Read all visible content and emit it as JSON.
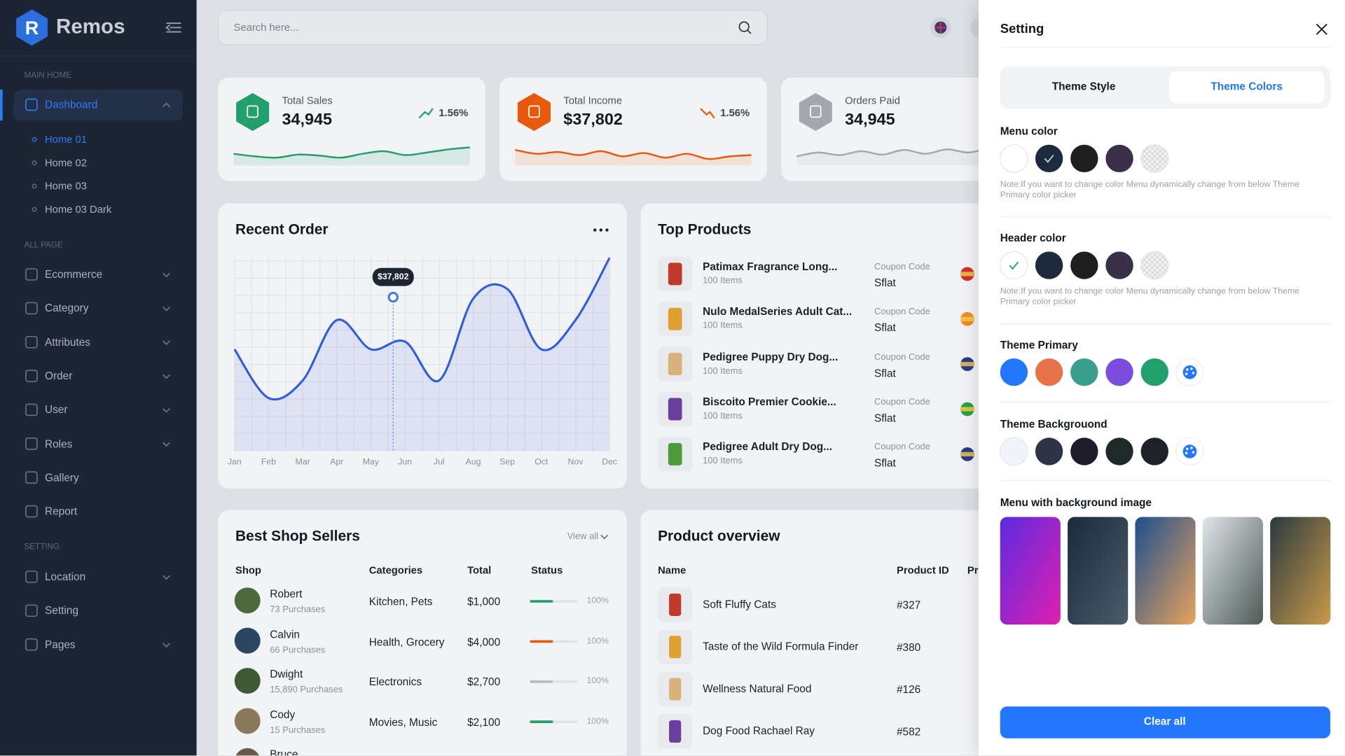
{
  "brand": "Remos",
  "logo_mark": "R",
  "search_placeholder": "Search here...",
  "sidebar": [
    {
      "heading": "MAIN HOME",
      "items": [
        {
          "label": "Dashboard",
          "active": true,
          "children": [
            "Home 01",
            "Home 02",
            "Home 03",
            "Home 03 Dark"
          ]
        }
      ]
    },
    {
      "heading": "ALL PAGE",
      "items": [
        {
          "label": "Ecommerce",
          "expandable": true
        },
        {
          "label": "Category",
          "expandable": true
        },
        {
          "label": "Attributes",
          "expandable": true
        },
        {
          "label": "Order",
          "expandable": true
        },
        {
          "label": "User",
          "expandable": true
        },
        {
          "label": "Roles",
          "expandable": true
        },
        {
          "label": "Gallery",
          "expandable": false
        },
        {
          "label": "Report",
          "expandable": false
        }
      ]
    },
    {
      "heading": "SETTING",
      "items": [
        {
          "label": "Location",
          "expandable": true
        },
        {
          "label": "Setting",
          "expandable": false
        },
        {
          "label": "Pages",
          "expandable": true
        }
      ]
    }
  ],
  "stats": [
    {
      "label": "Total Sales",
      "value": "34,945",
      "change": "1.56%",
      "trend": "up",
      "color": "#22a06b",
      "sparkline": [
        45,
        35,
        30,
        42,
        38,
        30,
        45,
        55,
        40,
        50,
        62,
        70
      ]
    },
    {
      "label": "Total Income",
      "value": "$37,802",
      "change": "1.56%",
      "trend": "down",
      "color": "#e8590c",
      "sparkline": [
        60,
        45,
        52,
        40,
        55,
        35,
        48,
        30,
        45,
        25,
        35,
        40
      ]
    },
    {
      "label": "Orders Paid",
      "value": "34,945",
      "color": "#a3a8b0",
      "sparkline": [
        35,
        50,
        40,
        55,
        42,
        60,
        45,
        62,
        50,
        65,
        55,
        60
      ]
    }
  ],
  "recent_order": {
    "title": "Recent Order",
    "type": "line",
    "categories": [
      "Jan",
      "Feb",
      "Mar",
      "Apr",
      "May",
      "Jun",
      "Jul",
      "Aug",
      "Sep",
      "Oct",
      "Nov",
      "Dec"
    ],
    "values": [
      52,
      27,
      36,
      67,
      52,
      56,
      36,
      78,
      83,
      52,
      67,
      99
    ],
    "ylim": [
      0,
      100
    ],
    "color": "#2d5be3",
    "tooltip": "$37,802"
  },
  "top_products": {
    "title": "Top Products",
    "items": [
      {
        "name": "Patimax Fragrance Long...",
        "count": "100 Items",
        "coupon_label": "Coupon Code",
        "coupon": "Sflat"
      },
      {
        "name": "Nulo MedalSeries Adult Cat...",
        "count": "100 Items",
        "coupon_label": "Coupon Code",
        "coupon": "Sflat"
      },
      {
        "name": "Pedigree Puppy Dry Dog...",
        "count": "100 Items",
        "coupon_label": "Coupon Code",
        "coupon": "Sflat"
      },
      {
        "name": "Biscoito Premier Cookie...",
        "count": "100 Items",
        "coupon_label": "Coupon Code",
        "coupon": "Sflat"
      },
      {
        "name": "Pedigree Adult Dry Dog...",
        "count": "100 Items",
        "coupon_label": "Coupon Code",
        "coupon": "Sflat"
      }
    ]
  },
  "best_sellers": {
    "title": "Best Shop Sellers",
    "view_all": "View all",
    "columns": [
      "Shop",
      "Categories",
      "Total",
      "Status"
    ],
    "rows": [
      {
        "name": "Robert",
        "purchases": "73 Purchases",
        "category": "Kitchen, Pets",
        "total": "$1,000",
        "status": "100%",
        "bar_color": "#22a06b"
      },
      {
        "name": "Calvin",
        "purchases": "66 Purchases",
        "category": "Health, Grocery",
        "total": "$4,000",
        "status": "100%",
        "bar_color": "#e8590c"
      },
      {
        "name": "Dwight",
        "purchases": "15,890 Purchases",
        "category": "Electronics",
        "total": "$2,700",
        "status": "100%",
        "bar_color": "#b7bcc4"
      },
      {
        "name": "Cody",
        "purchases": "15 Purchases",
        "category": "Movies, Music",
        "total": "$2,100",
        "status": "100%",
        "bar_color": "#22a06b"
      },
      {
        "name": "Bruce"
      }
    ]
  },
  "product_overview": {
    "title": "Product overview",
    "columns": [
      "Name",
      "Product ID",
      "Price"
    ],
    "rows": [
      {
        "name": "Soft Fluffy Cats",
        "id": "#327"
      },
      {
        "name": "Taste of the Wild Formula Finder",
        "id": "#380"
      },
      {
        "name": "Wellness Natural Food",
        "id": "#126"
      },
      {
        "name": "Dog Food Rachael Ray",
        "id": "#582"
      }
    ]
  },
  "settings": {
    "title": "Setting",
    "tabs": [
      "Theme Style",
      "Theme Colors"
    ],
    "active_tab": 1,
    "groups": [
      {
        "label": "Menu color",
        "swatches": [
          "#ffffff",
          "#1e2a3e",
          "#1f1f1f",
          "#3b3049",
          "pattern"
        ],
        "selected": 1,
        "note": "Note:If you want to change color Menu dynamically change from below Theme Primary color picker"
      },
      {
        "label": "Header color",
        "swatches": [
          "#ffffff",
          "#1e2a3e",
          "#1f1f1f",
          "#3b3049",
          "pattern"
        ],
        "selected": 0,
        "note": "Note:If you want to change color Menu dynamically change from below Theme Primary color picker"
      },
      {
        "label": "Theme Primary",
        "swatches": [
          "#2377fc",
          "#e8734a",
          "#3a9e8f",
          "#7c4ddc",
          "#22a06b"
        ],
        "picker": true
      },
      {
        "label": "Theme Backgrouond",
        "swatches": [
          "#f1f5f9",
          "#2d3446",
          "#1f1c2c",
          "#1d2a27",
          "#1f2128"
        ],
        "picker": true
      },
      {
        "label": "Menu with background image",
        "images": [
          [
            "#5b2be0",
            "#e01fb0"
          ],
          [
            "#1b2a3c",
            "#4a5b6a"
          ],
          [
            "#1c4f8f",
            "#e8a25c"
          ],
          [
            "#dfe5ea",
            "#4d5a55"
          ],
          [
            "#2a3a3f",
            "#c99a4a"
          ]
        ]
      }
    ],
    "button": "Clear all"
  }
}
